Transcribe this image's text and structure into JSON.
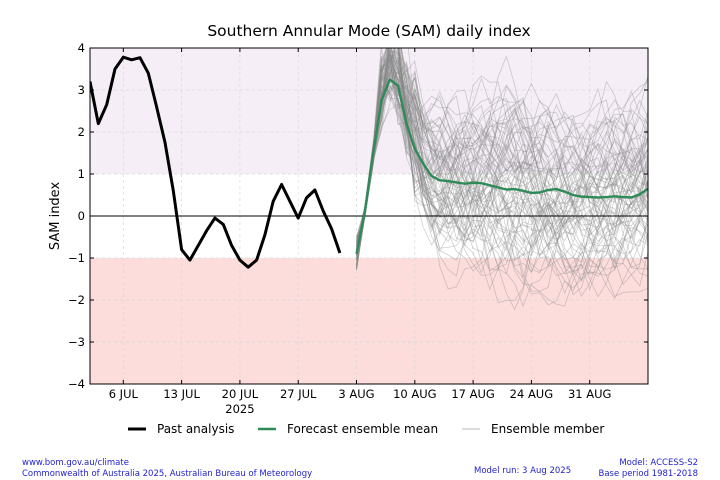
{
  "chart_data": {
    "type": "line",
    "title": "Southern Annular Mode (SAM) daily index",
    "ylabel": "SAM index",
    "xlabel": "",
    "ylim": [
      -4,
      4
    ],
    "yticks": [
      -4,
      -3,
      -2,
      -1,
      0,
      1,
      2,
      3,
      4
    ],
    "x_range": [
      "2025-07-02",
      "2025-09-07"
    ],
    "xticks": [
      {
        "date": "2025-07-06",
        "label": "6 JUL"
      },
      {
        "date": "2025-07-13",
        "label": "13 JUL"
      },
      {
        "date": "2025-07-20",
        "label": "20 JUL",
        "sublabel": "2025"
      },
      {
        "date": "2025-07-27",
        "label": "27 JUL"
      },
      {
        "date": "2025-08-03",
        "label": "3 AUG"
      },
      {
        "date": "2025-08-10",
        "label": "10 AUG"
      },
      {
        "date": "2025-08-17",
        "label": "17 AUG"
      },
      {
        "date": "2025-08-24",
        "label": "24 AUG"
      },
      {
        "date": "2025-08-31",
        "label": "31 AUG"
      }
    ],
    "grid": true,
    "legend_position": "bottom",
    "bands": [
      {
        "from": 1,
        "to": 4,
        "color": "#f5eef7"
      },
      {
        "from": -4,
        "to": -1,
        "color": "#fddcdc"
      }
    ],
    "series": [
      {
        "name": "Past analysis",
        "color": "#000000",
        "x": [
          "2025-07-02",
          "2025-07-03",
          "2025-07-04",
          "2025-07-05",
          "2025-07-06",
          "2025-07-07",
          "2025-07-08",
          "2025-07-09",
          "2025-07-10",
          "2025-07-11",
          "2025-07-12",
          "2025-07-13",
          "2025-07-14",
          "2025-07-15",
          "2025-07-16",
          "2025-07-17",
          "2025-07-18",
          "2025-07-19",
          "2025-07-20",
          "2025-07-21",
          "2025-07-22",
          "2025-07-23",
          "2025-07-24",
          "2025-07-25",
          "2025-07-26",
          "2025-07-27",
          "2025-07-28",
          "2025-07-29",
          "2025-07-30",
          "2025-07-31",
          "2025-08-01",
          "2025-08-02",
          "2025-08-03"
        ],
        "values": [
          3.2,
          2.2,
          2.65,
          3.5,
          3.78,
          3.72,
          3.77,
          3.4,
          2.6,
          1.75,
          0.6,
          -0.8,
          -1.05,
          -0.7,
          -0.35,
          -0.05,
          -0.2,
          -0.7,
          -1.05,
          -1.22,
          -1.05,
          -0.45,
          0.35,
          0.75,
          0.35,
          -0.05,
          0.43,
          0.62,
          0.12,
          -0.3,
          -0.88,
          null,
          null
        ]
      },
      {
        "name": "Forecast ensemble mean",
        "color": "#2e8b57",
        "x": [
          "2025-08-03",
          "2025-08-04",
          "2025-08-05",
          "2025-08-06",
          "2025-08-07",
          "2025-08-08",
          "2025-08-09",
          "2025-08-10",
          "2025-08-11",
          "2025-08-12",
          "2025-08-13",
          "2025-08-14",
          "2025-08-15",
          "2025-08-16",
          "2025-08-17",
          "2025-08-18",
          "2025-08-19",
          "2025-08-20",
          "2025-08-21",
          "2025-08-22",
          "2025-08-23",
          "2025-08-24",
          "2025-08-25",
          "2025-08-26",
          "2025-08-27",
          "2025-08-28",
          "2025-08-29",
          "2025-08-30",
          "2025-08-31",
          "2025-09-01",
          "2025-09-02",
          "2025-09-03",
          "2025-09-04",
          "2025-09-05",
          "2025-09-06",
          "2025-09-07"
        ],
        "values": [
          -0.9,
          0.1,
          1.5,
          2.75,
          3.25,
          3.1,
          2.2,
          1.6,
          1.25,
          0.95,
          0.85,
          0.83,
          0.8,
          0.77,
          0.79,
          0.78,
          0.73,
          0.68,
          0.63,
          0.64,
          0.6,
          0.55,
          0.56,
          0.62,
          0.64,
          0.58,
          0.5,
          0.46,
          0.45,
          0.44,
          0.45,
          0.47,
          0.45,
          0.44,
          0.52,
          0.65
        ]
      },
      {
        "name": "Ensemble member",
        "color": "#8a8a8a",
        "note_members": "spread",
        "start": "2025-08-03",
        "end": "2025-09-07"
      }
    ]
  },
  "footer": {
    "left_line1": "www.bom.gov.au/climate",
    "left_line2": "Commonwealth of Australia 2025, Australian Bureau of Meteorology",
    "model_run": "Model run: 3 Aug 2025",
    "model": "Model: ACCESS-S2",
    "base_period": "Base period 1981-2018"
  }
}
